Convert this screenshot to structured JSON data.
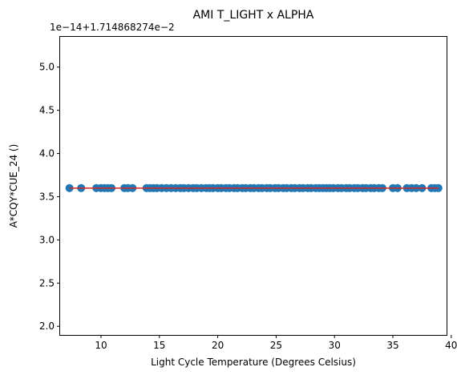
{
  "chart_data": {
    "type": "scatter",
    "title": "AMI T_LIGHT x ALPHA",
    "xlabel": "Light Cycle Temperature (Degrees Celsius)",
    "ylabel": "A*CQY*CUE_24 ()",
    "offset_text": "1e−14+1.714868274e−2",
    "xlim": [
      6.5,
      39.6
    ],
    "ylim": [
      1.9,
      5.35
    ],
    "xticks": [
      10,
      15,
      20,
      25,
      30,
      35,
      40
    ],
    "yticks": [
      2.0,
      2.5,
      3.0,
      3.5,
      4.0,
      4.5,
      5.0
    ],
    "ytick_labels": [
      "2.0",
      "2.5",
      "3.0",
      "3.5",
      "4.0",
      "4.5",
      "5.0"
    ],
    "grid": false,
    "series": [
      {
        "marker_color": "#1f77b4",
        "y_constant": 3.6,
        "x": [
          7.3,
          8.3,
          9.6,
          10.0,
          10.3,
          10.6,
          10.9,
          12.0,
          12.3,
          12.7,
          13.9,
          14.2,
          14.5,
          14.8,
          15.2,
          15.6,
          16.0,
          16.4,
          16.8,
          17.1,
          17.5,
          17.9,
          18.2,
          18.6,
          19.0,
          19.3,
          19.6,
          20.0,
          20.3,
          20.7,
          21.0,
          21.4,
          21.7,
          22.1,
          22.4,
          22.8,
          23.1,
          23.5,
          23.8,
          24.2,
          24.5,
          24.9,
          25.2,
          25.6,
          25.9,
          26.3,
          26.6,
          27.0,
          27.3,
          27.7,
          28.0,
          28.4,
          28.7,
          29.0,
          29.3,
          29.6,
          29.9,
          30.3,
          30.6,
          31.0,
          31.3,
          31.7,
          32.0,
          32.4,
          32.7,
          33.1,
          33.4,
          33.8,
          34.1,
          35.0,
          35.4,
          36.2,
          36.6,
          37.0,
          37.5,
          38.3,
          38.6,
          38.9
        ]
      }
    ],
    "fit_line": {
      "color": "#d62728",
      "x": [
        7.3,
        38.9
      ],
      "y": [
        3.6,
        3.6
      ]
    }
  }
}
